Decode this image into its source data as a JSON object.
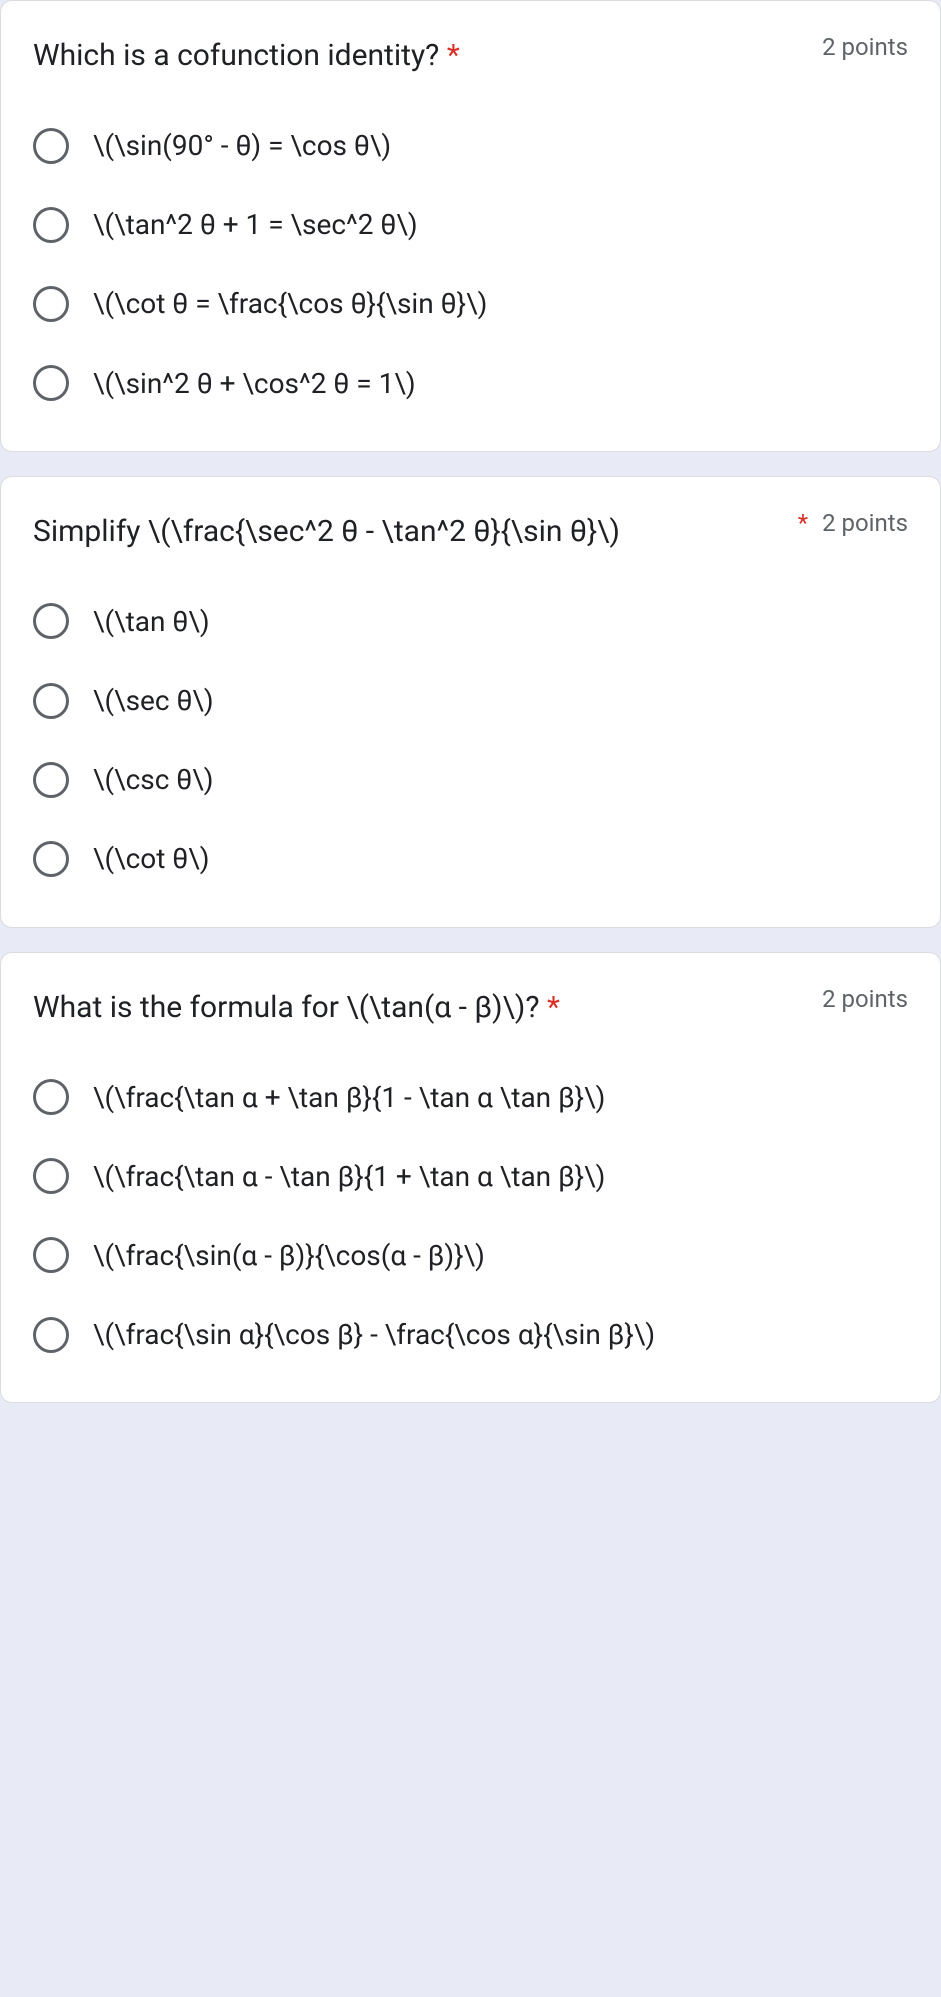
{
  "colors": {
    "page_bg": "#e8eaf6",
    "card_bg": "#ffffff",
    "card_border": "#dadce0",
    "text_primary": "#202124",
    "text_secondary": "#5f6368",
    "required_mark": "#d93025",
    "radio_border": "#5f6368"
  },
  "typography": {
    "title_fontsize": 30,
    "option_fontsize": 28,
    "points_fontsize": 24,
    "font_family": "Roboto, Arial, sans-serif"
  },
  "questions": [
    {
      "title": "Which is a cofunction identity?",
      "required": true,
      "points_label": "2 points",
      "points_has_leading_asterisk": false,
      "options": [
        "\\(\\sin(90° - θ) = \\cos θ\\)",
        "\\(\\tan^2 θ + 1 = \\sec^2 θ\\)",
        "\\(\\cot θ = \\frac{\\cos θ}{\\sin θ}\\)",
        "\\(\\sin^2 θ + \\cos^2 θ = 1\\)"
      ]
    },
    {
      "title": "Simplify \\(\\frac{\\sec^2 θ - \\tan^2 θ}{\\sin θ}\\)",
      "required": true,
      "points_label": "2 points",
      "points_has_leading_asterisk": true,
      "options": [
        "\\(\\tan θ\\)",
        "\\(\\sec θ\\)",
        "\\(\\csc θ\\)",
        "\\(\\cot θ\\)"
      ]
    },
    {
      "title": "What is the formula for \\(\\tan(α - β)\\)?",
      "required": true,
      "points_label": "2 points",
      "points_has_leading_asterisk": false,
      "options": [
        "\\(\\frac{\\tan α + \\tan β}{1 - \\tan α \\tan β}\\)",
        "\\(\\frac{\\tan α - \\tan β}{1 + \\tan α \\tan β}\\)",
        "\\(\\frac{\\sin(α - β)}{\\cos(α - β)}\\)",
        "\\(\\frac{\\sin α}{\\cos β} - \\frac{\\cos α}{\\sin β}\\)"
      ]
    }
  ]
}
